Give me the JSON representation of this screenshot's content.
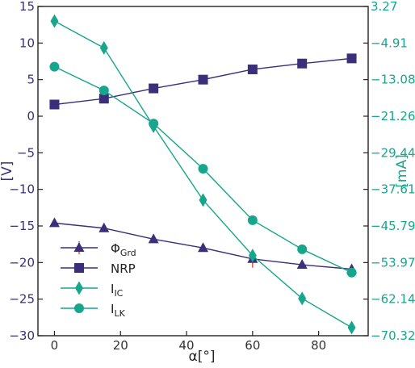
{
  "chart_data": {
    "type": "line",
    "xlabel": "α[°]",
    "ylabel_left": "[V]",
    "ylabel_right": "[mA]",
    "xlim": [
      -5,
      95
    ],
    "ylim_left": [
      -30,
      15
    ],
    "ylim_right": [
      -70.32,
      3.27
    ],
    "x_ticks": [
      0,
      20,
      40,
      60,
      80
    ],
    "y_left_ticks": [
      15,
      10,
      5,
      0,
      -5,
      -10,
      -15,
      -20,
      -25,
      -30
    ],
    "y_right_ticks": [
      3.27,
      -4.91,
      -13.08,
      -21.26,
      -29.44,
      -37.61,
      -45.79,
      -53.97,
      -62.14,
      -70.32
    ],
    "x_tick_labels": [
      "0",
      "20",
      "40",
      "60",
      "80"
    ],
    "y_left_tick_labels": [
      "15",
      "10",
      "5",
      "0",
      "−5",
      "−10",
      "−15",
      "−20",
      "−25",
      "−30"
    ],
    "y_right_tick_labels": [
      "3.27",
      "−4.91",
      "−13.08",
      "−21.26",
      "−29.44",
      "−37.61",
      "−45.79",
      "−53.97",
      "−62.14",
      "−70.32"
    ],
    "legend_position": "lower-left",
    "grid": false,
    "series": [
      {
        "name": "Φ_Grd",
        "label_main": "Φ",
        "label_sub": "Grd",
        "axis": "left",
        "marker": "triangle",
        "color": "#3b2f7a",
        "x": [
          0,
          15,
          30,
          45,
          60,
          75,
          90
        ],
        "y": [
          -14.6,
          -15.3,
          -16.8,
          -18.0,
          -19.5,
          -20.3,
          -20.9
        ],
        "error": [
          0.3,
          0.3,
          0.3,
          0.4,
          1.2,
          0.4,
          0.3
        ]
      },
      {
        "name": "NRP",
        "label_main": "NRP",
        "label_sub": "",
        "axis": "left",
        "marker": "square",
        "color": "#3b2f7a",
        "x": [
          0,
          15,
          30,
          45,
          60,
          75,
          90
        ],
        "y": [
          1.6,
          2.4,
          3.8,
          5.0,
          6.4,
          7.2,
          7.9
        ],
        "error": [
          0,
          0,
          0,
          0,
          0,
          0,
          0
        ]
      },
      {
        "name": "I_IC",
        "label_main": "I",
        "label_sub": "IC",
        "axis": "right",
        "marker": "diamond",
        "color": "#17a68b",
        "x": [
          0,
          15,
          30,
          45,
          60,
          75,
          90
        ],
        "y": [
          0.0,
          -6.0,
          -23.5,
          -40.0,
          -52.4,
          -62.0,
          -68.5
        ],
        "error": [
          0,
          0,
          0,
          0,
          0,
          0,
          0
        ]
      },
      {
        "name": "I_LK",
        "label_main": "I",
        "label_sub": "LK",
        "axis": "right",
        "marker": "circle",
        "color": "#17a68b",
        "x": [
          0,
          15,
          30,
          45,
          60,
          75,
          90
        ],
        "y": [
          -10.2,
          -15.5,
          -22.9,
          -33.0,
          -44.5,
          -51.0,
          -56.2
        ],
        "error": [
          0,
          0,
          0,
          0,
          0,
          0,
          0
        ]
      }
    ]
  }
}
